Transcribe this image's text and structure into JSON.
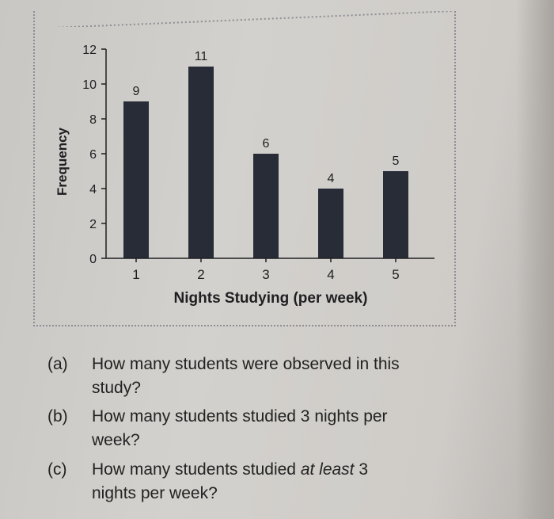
{
  "chart_data": {
    "type": "bar",
    "categories": [
      "1",
      "2",
      "3",
      "4",
      "5"
    ],
    "values": [
      9,
      11,
      6,
      4,
      5
    ],
    "data_labels": [
      "9",
      "11",
      "6",
      "4",
      "5"
    ],
    "xlabel": "Nights Studying (per week)",
    "ylabel": "Frequency",
    "ylim": [
      0,
      12
    ],
    "yticks": [
      "0",
      "2",
      "4",
      "6",
      "8",
      "10",
      "12"
    ],
    "bar_color": "#272c37",
    "grid": false
  },
  "questions": [
    {
      "label": "(a)",
      "line1": "How many students were observed in this",
      "line2": "study?"
    },
    {
      "label": "(b)",
      "line1": "How many students studied 3 nights per",
      "line2": "week?"
    },
    {
      "label": "(c)",
      "line1_pre": "How many students studied ",
      "line1_em": "at least",
      "line1_post": " 3",
      "line2": "nights per week?"
    }
  ]
}
